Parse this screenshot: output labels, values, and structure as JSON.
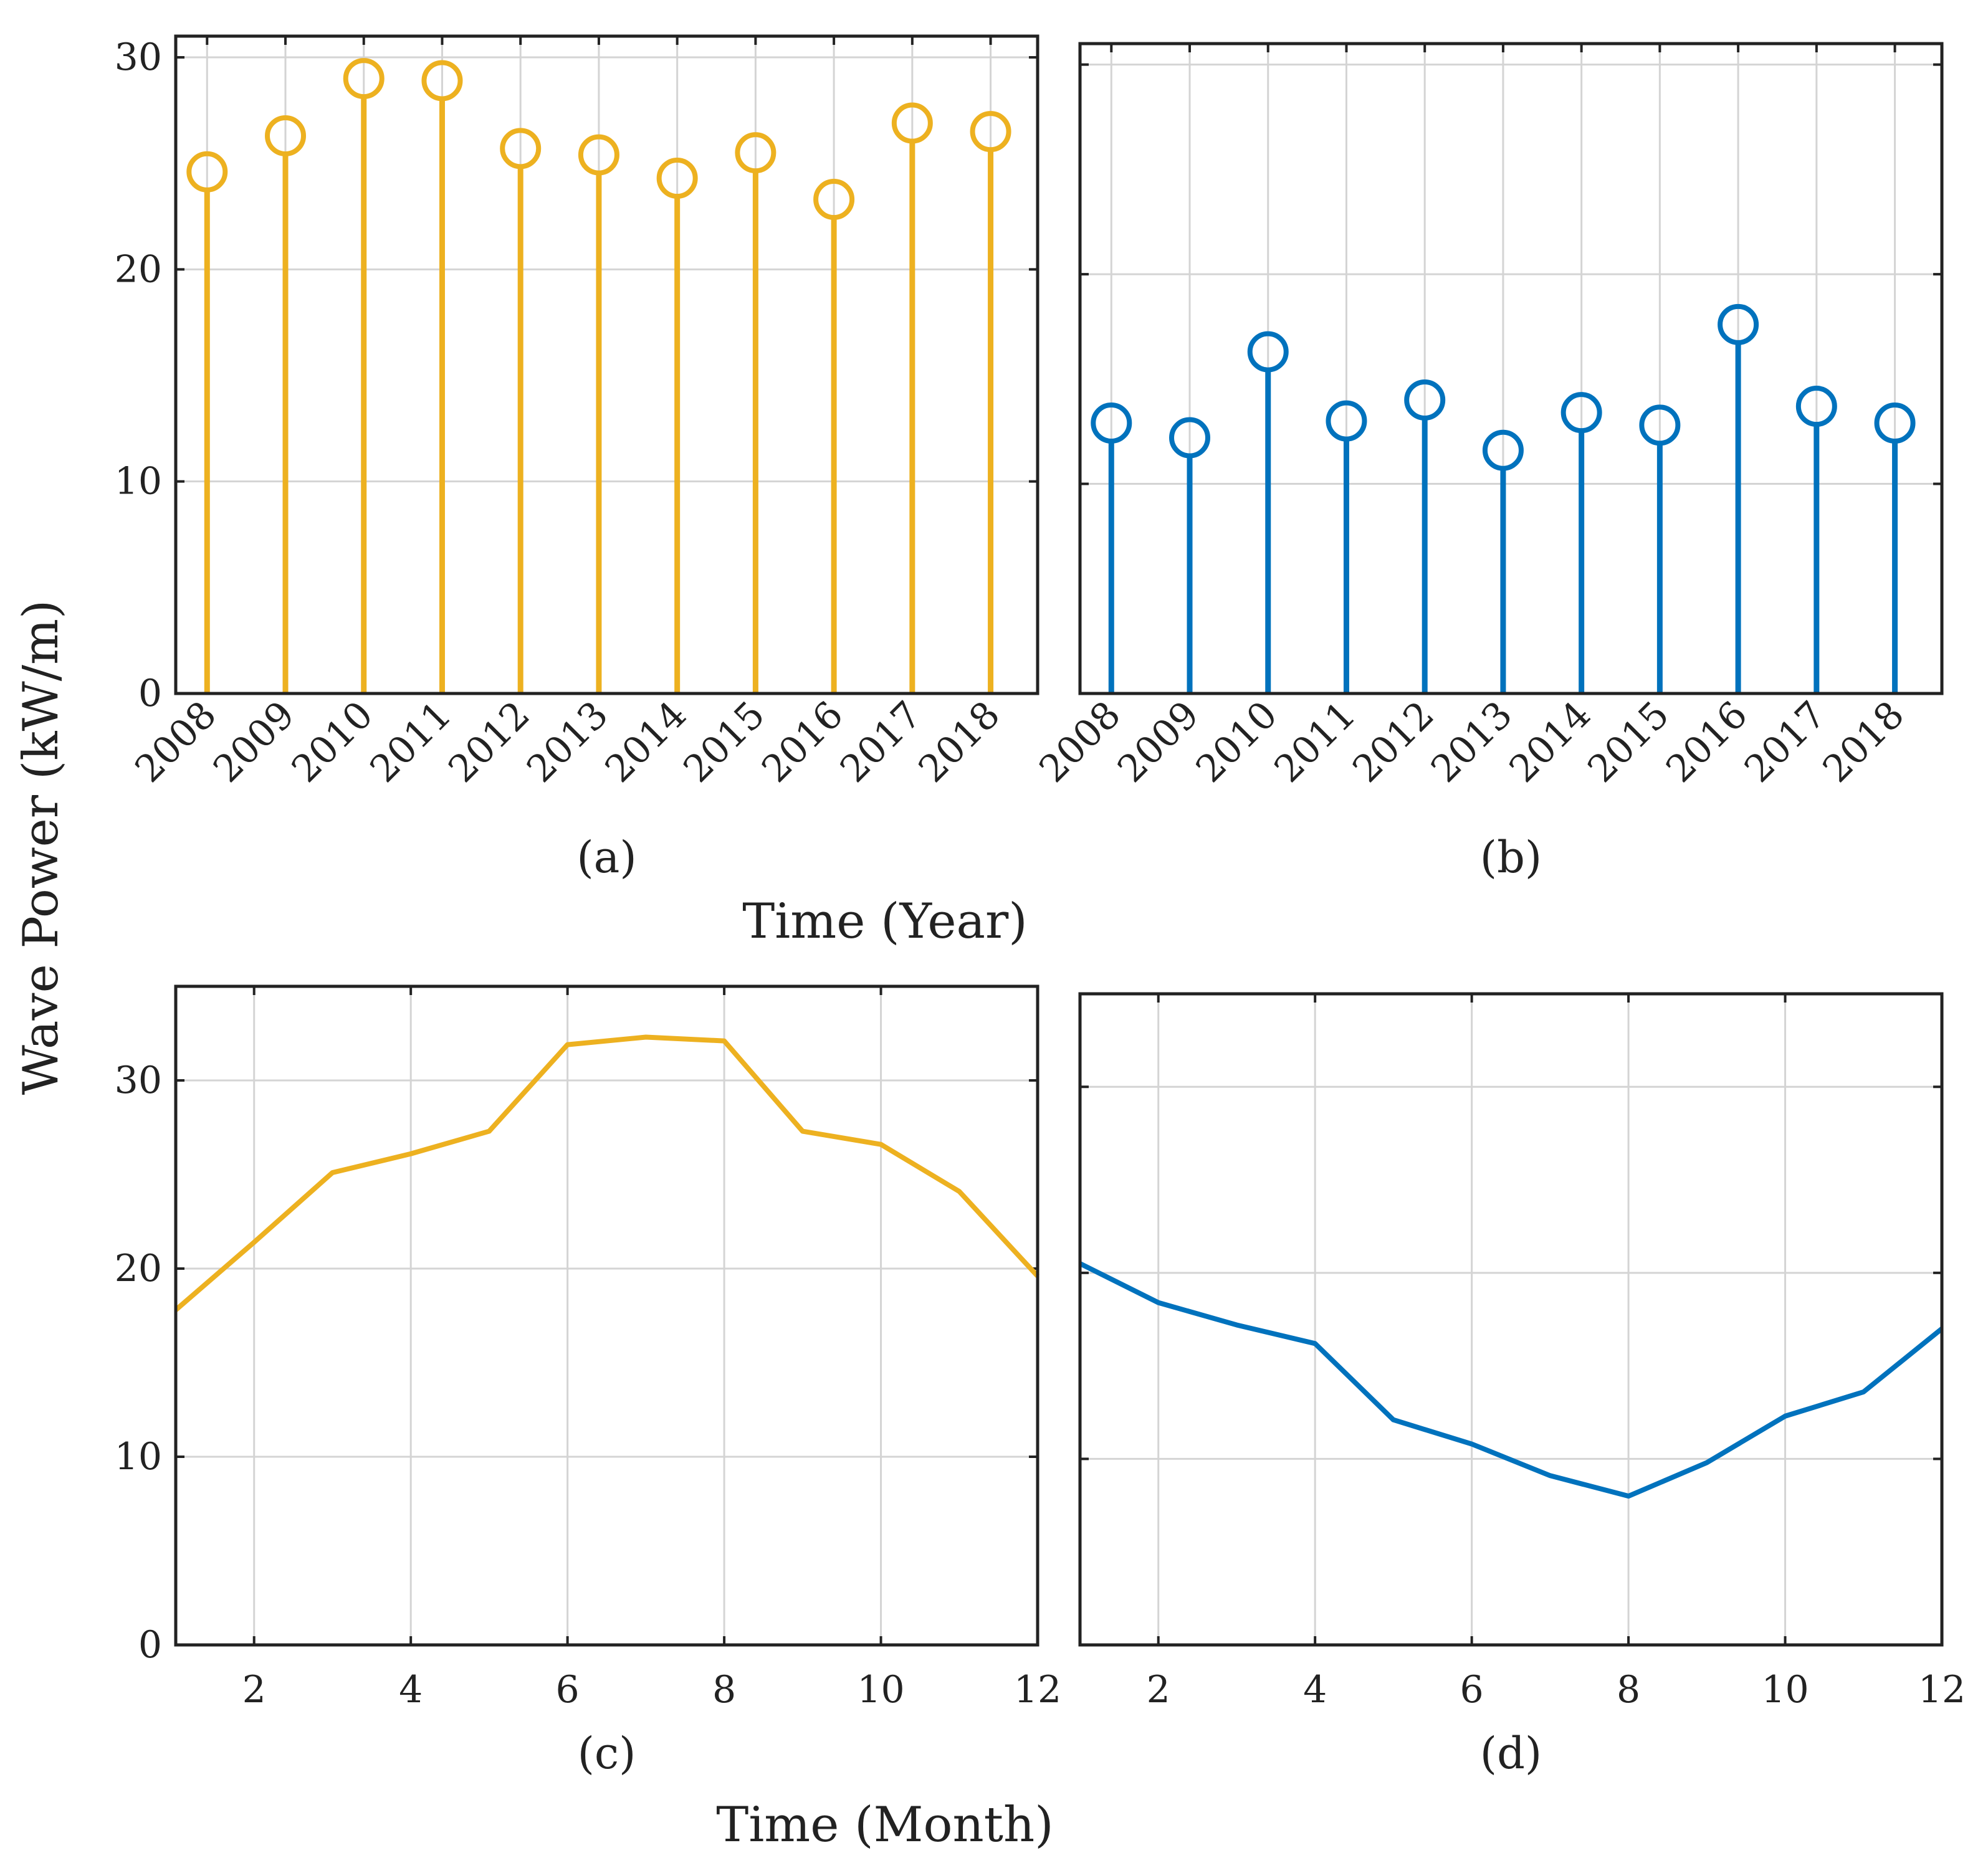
{
  "figure": {
    "ylabel": "Wave Power (kW/m)",
    "xlabel_top": "Time (Year)",
    "xlabel_bottom": "Time (Month)"
  },
  "colors": {
    "yellow": "#EDB120",
    "blue": "#0072BD"
  },
  "chart_data": [
    {
      "id": "a",
      "label": "(a)",
      "type": "stem",
      "color": "yellow",
      "x": [
        2008,
        2009,
        2010,
        2011,
        2012,
        2013,
        2014,
        2015,
        2016,
        2017,
        2018
      ],
      "values": [
        24.6,
        26.3,
        29.0,
        28.9,
        25.7,
        25.4,
        24.3,
        25.5,
        23.3,
        26.9,
        26.5
      ],
      "xlim": [
        2007.6,
        2018.6
      ],
      "ylim": [
        0,
        31
      ],
      "yticks": [
        0,
        10,
        20,
        30
      ],
      "ytick_labels": [
        "0",
        "10",
        "20",
        "30"
      ],
      "xtick_labels": [
        "2008",
        "2009",
        "2010",
        "2011",
        "2012",
        "2013",
        "2014",
        "2015",
        "2016",
        "2017",
        "2018"
      ],
      "grid": true
    },
    {
      "id": "b",
      "label": "(b)",
      "type": "stem",
      "color": "blue",
      "x": [
        2008,
        2009,
        2010,
        2011,
        2012,
        2013,
        2014,
        2015,
        2016,
        2017,
        2018
      ],
      "values": [
        12.9,
        12.2,
        16.3,
        13.0,
        14.0,
        11.6,
        13.4,
        12.8,
        17.6,
        13.7,
        12.9
      ],
      "xlim": [
        2007.6,
        2018.6
      ],
      "ylim": [
        0,
        31
      ],
      "yticks": [
        0,
        10,
        20,
        30
      ],
      "ytick_labels": [],
      "xtick_labels": [
        "2008",
        "2009",
        "2010",
        "2011",
        "2012",
        "2013",
        "2014",
        "2015",
        "2016",
        "2017",
        "2018"
      ],
      "grid": true
    },
    {
      "id": "c",
      "label": "(c)",
      "type": "line",
      "color": "yellow",
      "x": [
        1,
        2,
        3,
        4,
        5,
        6,
        7,
        8,
        9,
        10,
        11,
        12
      ],
      "values": [
        17.8,
        21.4,
        25.1,
        26.1,
        27.3,
        31.9,
        32.3,
        32.1,
        27.3,
        26.6,
        24.1,
        19.6
      ],
      "xlim": [
        1,
        12
      ],
      "ylim": [
        0,
        35
      ],
      "xticks": [
        2,
        4,
        6,
        8,
        10,
        12
      ],
      "xtick_labels": [
        "2",
        "4",
        "6",
        "8",
        "10",
        "12"
      ],
      "yticks": [
        0,
        10,
        20,
        30
      ],
      "ytick_labels": [
        "0",
        "10",
        "20",
        "30"
      ],
      "grid": true
    },
    {
      "id": "d",
      "label": "(d)",
      "type": "line",
      "color": "blue",
      "x": [
        1,
        2,
        3,
        4,
        5,
        6,
        7,
        8,
        9,
        10,
        11,
        12
      ],
      "values": [
        20.5,
        18.4,
        17.2,
        16.2,
        12.1,
        10.8,
        9.1,
        8.0,
        9.8,
        12.3,
        13.6,
        17.0
      ],
      "xlim": [
        1,
        12
      ],
      "ylim": [
        0,
        35
      ],
      "xticks": [
        2,
        4,
        6,
        8,
        10,
        12
      ],
      "xtick_labels": [
        "2",
        "4",
        "6",
        "8",
        "10",
        "12"
      ],
      "yticks": [
        0,
        10,
        20,
        30
      ],
      "ytick_labels": [],
      "grid": true
    }
  ]
}
